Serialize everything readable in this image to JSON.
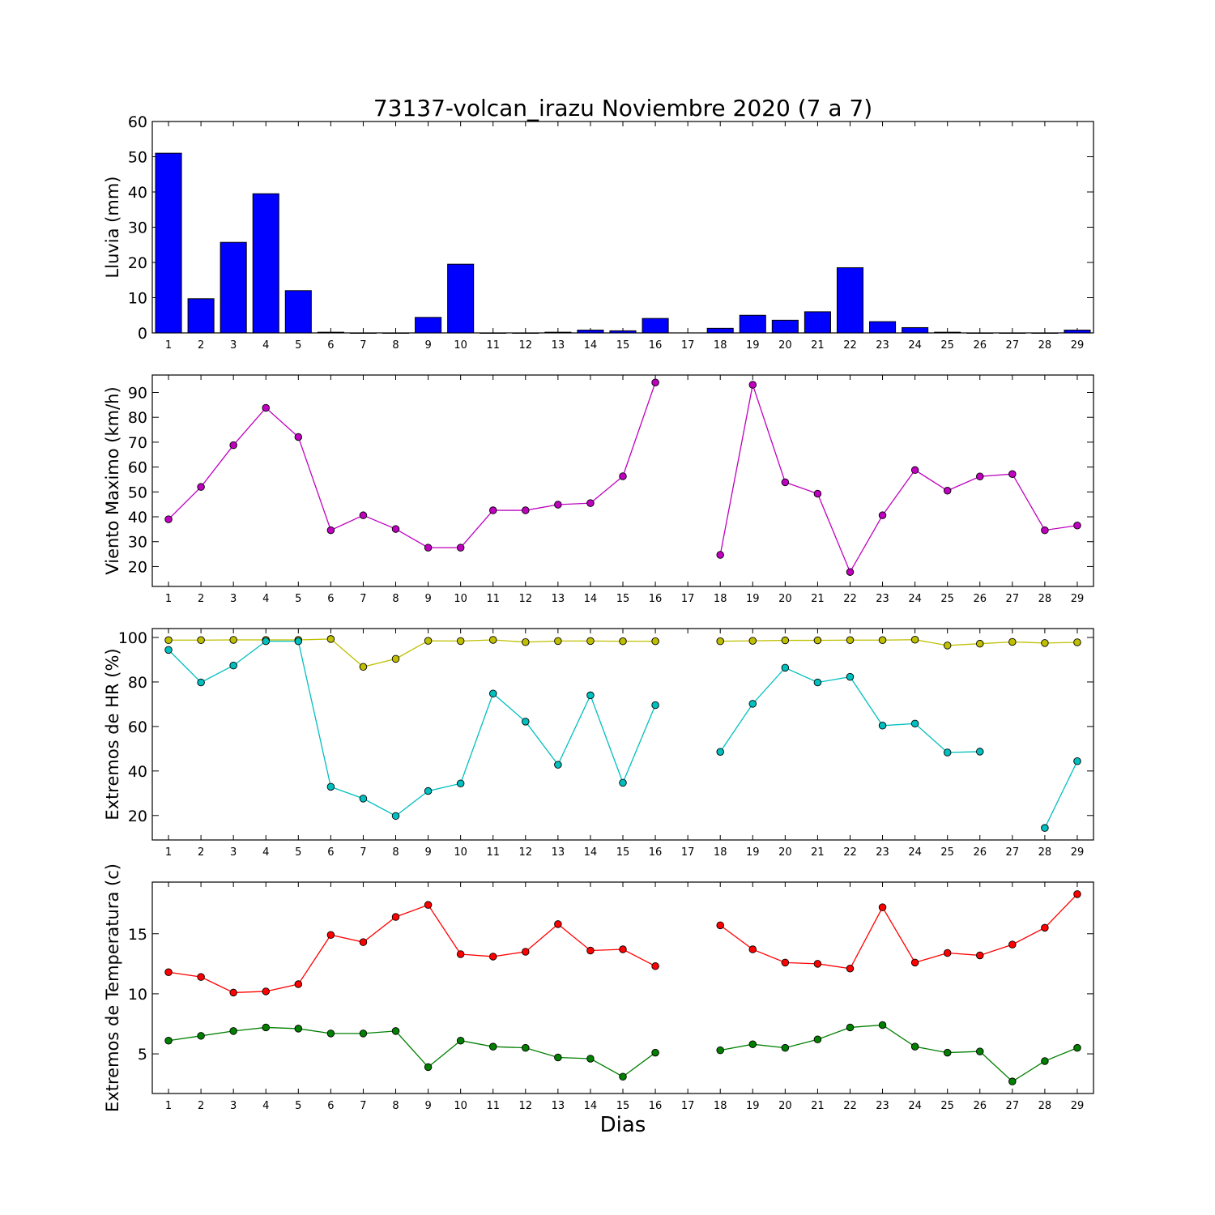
{
  "figure": {
    "title": "73137-volcan_irazu Noviembre 2020  (7 a 7)",
    "xlabel": "Dias"
  },
  "chart_data": [
    {
      "type": "bar",
      "id": "rain",
      "ylabel": "Lluvia (mm)",
      "ylim": [
        0,
        60
      ],
      "yticks": [
        0,
        10,
        20,
        30,
        40,
        50,
        60
      ],
      "categories": [
        "1",
        "2",
        "3",
        "4",
        "5",
        "6",
        "7",
        "8",
        "9",
        "10",
        "11",
        "12",
        "13",
        "14",
        "15",
        "16",
        "17",
        "18",
        "19",
        "20",
        "21",
        "22",
        "23",
        "24",
        "25",
        "26",
        "27",
        "28",
        "29"
      ],
      "series": [
        {
          "color": "#0000ff",
          "values": [
            51.0,
            9.7,
            25.7,
            39.5,
            12.0,
            0.2,
            0.0,
            0.0,
            4.4,
            19.5,
            0.0,
            0.0,
            0.2,
            0.8,
            0.6,
            4.1,
            null,
            1.3,
            5.0,
            3.6,
            6.0,
            18.5,
            3.2,
            1.5,
            0.2,
            0.0,
            0.0,
            0.0,
            0.8
          ]
        }
      ]
    },
    {
      "type": "line",
      "id": "wind",
      "ylabel": "Viento Maximo (km/h)",
      "ylim": [
        12,
        97
      ],
      "yticks": [
        20,
        30,
        40,
        50,
        60,
        70,
        80,
        90
      ],
      "categories": [
        "1",
        "2",
        "3",
        "4",
        "5",
        "6",
        "7",
        "8",
        "9",
        "10",
        "11",
        "12",
        "13",
        "14",
        "15",
        "16",
        "17",
        "18",
        "19",
        "20",
        "21",
        "22",
        "23",
        "24",
        "25",
        "26",
        "27",
        "28",
        "29"
      ],
      "series": [
        {
          "color": "#bf00bf",
          "values": [
            39,
            52,
            68.8,
            83.8,
            72.1,
            34.6,
            40.6,
            35.1,
            27.6,
            27.6,
            42.6,
            42.6,
            44.9,
            45.5,
            56.3,
            94,
            null,
            24.7,
            93.1,
            53.9,
            49.3,
            17.8,
            40.6,
            58.8,
            50.5,
            56.2,
            57.2,
            34.6,
            36.5
          ]
        }
      ]
    },
    {
      "type": "line",
      "id": "humidity",
      "ylabel": "Extremos de HR (%)",
      "ylim": [
        9,
        104
      ],
      "yticks": [
        20,
        40,
        60,
        80,
        100
      ],
      "categories": [
        "1",
        "2",
        "3",
        "4",
        "5",
        "6",
        "7",
        "8",
        "9",
        "10",
        "11",
        "12",
        "13",
        "14",
        "15",
        "16",
        "17",
        "18",
        "19",
        "20",
        "21",
        "22",
        "23",
        "24",
        "25",
        "26",
        "27",
        "28",
        "29"
      ],
      "series": [
        {
          "color": "#bfbf00",
          "values": [
            98.8,
            98.8,
            98.9,
            98.9,
            98.9,
            99.3,
            86.8,
            90.4,
            98.5,
            98.4,
            98.9,
            97.9,
            98.4,
            98.4,
            98.3,
            98.3,
            null,
            98.3,
            98.5,
            98.7,
            98.7,
            98.8,
            98.8,
            99.0,
            96.4,
            97.2,
            98.0,
            97.5,
            97.8
          ]
        },
        {
          "color": "#00bfbf",
          "values": [
            94.4,
            79.8,
            87.4,
            98.3,
            98.3,
            32.9,
            27.6,
            19.8,
            31.0,
            34.4,
            74.8,
            62.2,
            42.8,
            74.0,
            34.7,
            69.6,
            null,
            48.6,
            70.2,
            86.4,
            79.8,
            82.3,
            60.4,
            61.3,
            48.3,
            48.7,
            null,
            14.4,
            44.4
          ]
        }
      ]
    },
    {
      "type": "line",
      "id": "temperature",
      "ylabel": "Extremos de Temperatura (c)",
      "ylim": [
        1.7,
        19.3
      ],
      "yticks": [
        5,
        10,
        15
      ],
      "categories": [
        "1",
        "2",
        "3",
        "4",
        "5",
        "6",
        "7",
        "8",
        "9",
        "10",
        "11",
        "12",
        "13",
        "14",
        "15",
        "16",
        "17",
        "18",
        "19",
        "20",
        "21",
        "22",
        "23",
        "24",
        "25",
        "26",
        "27",
        "28",
        "29"
      ],
      "series": [
        {
          "color": "#ff0000",
          "values": [
            11.8,
            11.4,
            10.1,
            10.2,
            10.8,
            14.9,
            14.3,
            16.4,
            17.4,
            13.3,
            13.1,
            13.5,
            15.8,
            13.6,
            13.7,
            12.3,
            null,
            15.7,
            13.7,
            12.6,
            12.5,
            12.1,
            17.2,
            12.6,
            13.4,
            13.2,
            14.1,
            15.5,
            18.3
          ]
        },
        {
          "color": "#007f00",
          "values": [
            6.1,
            6.5,
            6.9,
            7.2,
            7.1,
            6.7,
            6.7,
            6.9,
            3.9,
            6.1,
            5.6,
            5.5,
            4.7,
            4.6,
            3.1,
            5.1,
            null,
            5.3,
            5.8,
            5.5,
            6.2,
            7.2,
            7.4,
            5.6,
            5.1,
            5.2,
            2.7,
            4.4,
            5.5
          ]
        }
      ]
    }
  ]
}
